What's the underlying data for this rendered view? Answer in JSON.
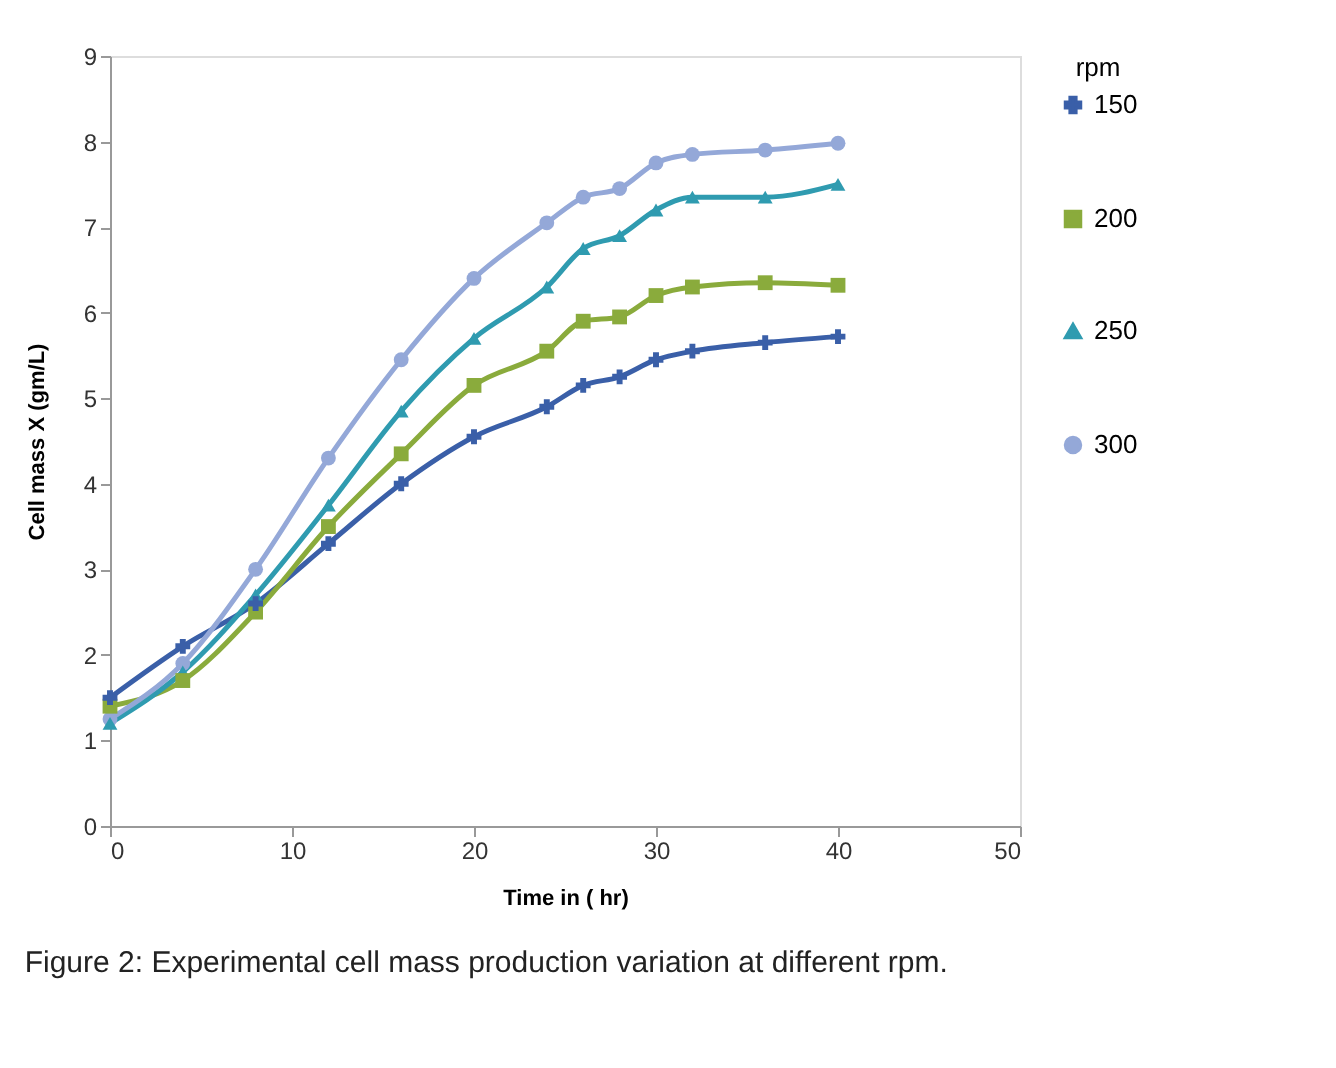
{
  "chart_data": {
    "type": "line",
    "xlabel": "Time in ( hr)",
    "ylabel": "Cell mass X (gm/L)",
    "legend_title": "rpm",
    "legend": "right",
    "x": [
      0,
      4,
      8,
      12,
      16,
      20,
      24,
      26,
      28,
      30,
      32,
      36,
      40
    ],
    "series": [
      {
        "name": "150",
        "color": "#3a5fa8",
        "marker": "cross",
        "values": [
          1.5,
          2.1,
          2.6,
          3.3,
          4.0,
          4.55,
          4.9,
          5.15,
          5.25,
          5.45,
          5.55,
          5.65,
          5.72
        ]
      },
      {
        "name": "200",
        "color": "#8aab3c",
        "marker": "square",
        "values": [
          1.4,
          1.7,
          2.5,
          3.5,
          4.35,
          5.15,
          5.55,
          5.9,
          5.95,
          6.2,
          6.3,
          6.35,
          6.32
        ]
      },
      {
        "name": "250",
        "color": "#2f9bb0",
        "marker": "triangle",
        "values": [
          1.2,
          1.8,
          2.7,
          3.75,
          4.85,
          5.7,
          6.3,
          6.75,
          6.9,
          7.2,
          7.35,
          7.35,
          7.5
        ]
      },
      {
        "name": "300",
        "color": "#94a8d8",
        "marker": "circle",
        "values": [
          1.25,
          1.9,
          3.0,
          4.3,
          5.45,
          6.4,
          7.05,
          7.35,
          7.45,
          7.75,
          7.85,
          7.9,
          7.98
        ]
      }
    ],
    "xlim": [
      0,
      50
    ],
    "xticks": [
      0,
      10,
      20,
      30,
      40,
      50
    ],
    "ylim": [
      0,
      9
    ],
    "yticks": [
      0,
      1,
      2,
      3,
      4,
      5,
      6,
      7,
      8,
      9
    ],
    "grid": false,
    "line_style": "solid",
    "annotations": [
      "Figure 2: Experimental cell mass production variation at different rpm."
    ]
  }
}
